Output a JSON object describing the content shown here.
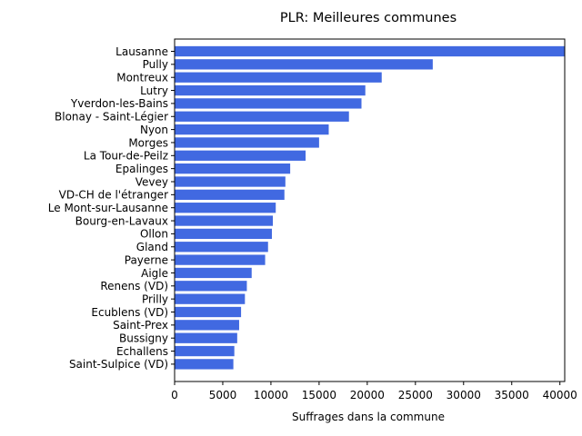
{
  "chart_data": {
    "type": "bar",
    "orientation": "horizontal",
    "title": "PLR: Meilleures communes",
    "xlabel": "Suffrages dans la commune",
    "ylabel": "",
    "xlim": [
      0,
      40500
    ],
    "xticks": [
      0,
      5000,
      10000,
      15000,
      20000,
      25000,
      30000,
      35000,
      40000
    ],
    "grid": false,
    "bar_color": "#4169E1",
    "categories": [
      "Lausanne",
      "Pully",
      "Montreux",
      "Lutry",
      "Yverdon-les-Bains",
      "Blonay - Saint-Légier",
      "Nyon",
      "Morges",
      "La Tour-de-Peilz",
      "Epalinges",
      "Vevey",
      "VD-CH de l'étranger",
      "Le Mont-sur-Lausanne",
      "Bourg-en-Lavaux",
      "Ollon",
      "Gland",
      "Payerne",
      "Aigle",
      "Renens (VD)",
      "Prilly",
      "Ecublens (VD)",
      "Saint-Prex",
      "Bussigny",
      "Echallens",
      "Saint-Sulpice (VD)"
    ],
    "values": [
      40500,
      26800,
      21500,
      19800,
      19400,
      18100,
      16000,
      15000,
      13600,
      12000,
      11500,
      11400,
      10500,
      10200,
      10100,
      9700,
      9400,
      8000,
      7500,
      7300,
      6900,
      6700,
      6500,
      6200,
      6100
    ]
  }
}
